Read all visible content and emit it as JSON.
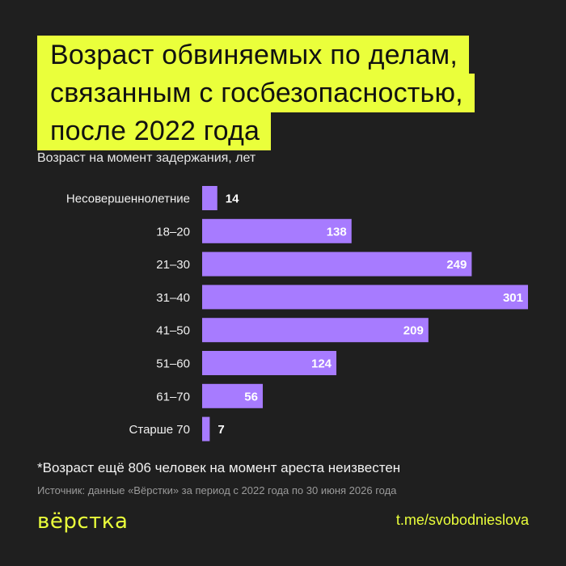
{
  "title_lines": [
    "Возраст обвиняемых по делам,",
    "связанным с госбезопасностью,",
    "после 2022 года"
  ],
  "subtitle": "Возраст на момент задержания, лет",
  "footnote": "*Возраст ещё 806 человек на момент ареста неизвестен",
  "source": "Источник: данные «Вёрстки» за период с 2022 года по 30 июня 2026 года",
  "logo": "вёрстка",
  "link": "t.me/svobodnieslova",
  "colors": {
    "background": "#1f1f1f",
    "accent": "#eaff3b",
    "bar": "#a77bff",
    "text": "#ffffff"
  },
  "chart_data": {
    "type": "bar",
    "orientation": "horizontal",
    "title": "Возраст обвиняемых по делам, связанным с госбезопасностью, после 2022 года",
    "xlabel": "",
    "ylabel": "Возраст на момент задержания, лет",
    "categories": [
      "Несовершеннолетние",
      "18–20",
      "21–30",
      "31–40",
      "41–50",
      "51–60",
      "61–70",
      "Старше 70"
    ],
    "values": [
      14,
      138,
      249,
      301,
      209,
      124,
      56,
      7
    ],
    "xlim": [
      0,
      301
    ],
    "grid": false,
    "legend": "none"
  }
}
